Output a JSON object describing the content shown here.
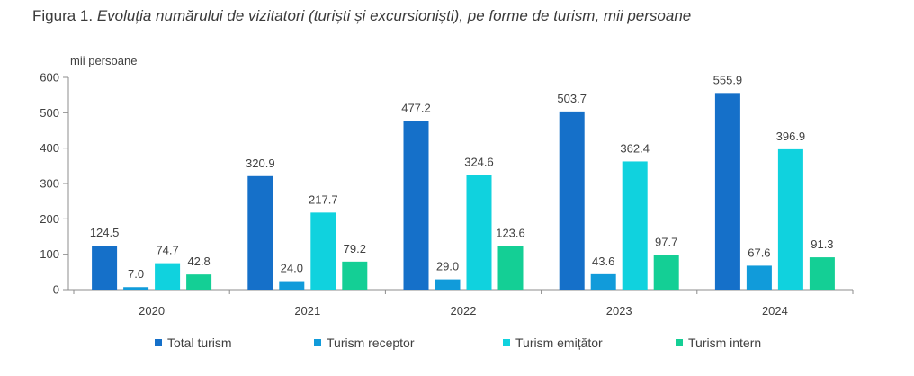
{
  "figure": {
    "prefix": "Figura 1.",
    "title": "Evoluția numărului de vizitatori (turiști și excursioniști), pe forme de turism, mii persoane"
  },
  "chart_data": {
    "type": "bar",
    "title": "Evoluția numărului de vizitatori (turiști și excursioniști), pe forme de turism, mii persoane",
    "ylabel": "mii persoane",
    "xlabel": "",
    "ylim": [
      0,
      600
    ],
    "yticks": [
      0,
      100,
      200,
      300,
      400,
      500,
      600
    ],
    "categories": [
      "2020",
      "2021",
      "2022",
      "2023",
      "2024"
    ],
    "series": [
      {
        "name": "Total turism",
        "color": "#1570C9",
        "values": [
          124.5,
          320.9,
          477.2,
          503.7,
          555.9
        ],
        "labels": [
          "124.5",
          "320.9",
          "477.2",
          "503.7",
          "555.9"
        ]
      },
      {
        "name": "Turism receptor",
        "color": "#119BDA",
        "values": [
          7.0,
          24.0,
          29.0,
          43.6,
          67.6
        ],
        "labels": [
          "7.0",
          "24.0",
          "29.0",
          "43.6",
          "67.6"
        ]
      },
      {
        "name": "Turism emițător",
        "color": "#10D2DE",
        "values": [
          74.7,
          217.7,
          324.6,
          362.4,
          396.9
        ],
        "labels": [
          "74.7",
          "217.7",
          "324.6",
          "362.4",
          "396.9"
        ]
      },
      {
        "name": "Turism intern",
        "color": "#14CF95",
        "values": [
          42.8,
          79.2,
          123.6,
          97.7,
          91.3
        ],
        "labels": [
          "42.8",
          "79.2",
          "123.6",
          "97.7",
          "91.3"
        ]
      }
    ],
    "grid": false,
    "legend": "bottom"
  }
}
